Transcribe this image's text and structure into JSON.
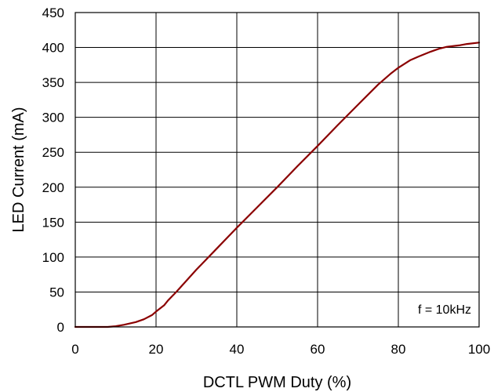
{
  "chart_data": {
    "type": "line",
    "title": "",
    "xlabel": "DCTL PWM Duty (%)",
    "ylabel": "LED Current (mA)",
    "xlim": [
      0,
      100
    ],
    "ylim": [
      0,
      450
    ],
    "xticks": [
      0,
      20,
      40,
      60,
      80,
      100
    ],
    "yticks": [
      0,
      50,
      100,
      150,
      200,
      250,
      300,
      350,
      400,
      450
    ],
    "grid": true,
    "legend": "none",
    "annotation": "f = 10kHz",
    "series": [
      {
        "color": "#8b0000",
        "x": [
          0,
          5,
          8,
          10,
          12,
          15,
          17,
          19,
          20,
          22,
          23,
          25,
          30,
          35,
          40,
          45,
          50,
          55,
          60,
          65,
          70,
          75,
          78,
          80,
          83,
          85,
          88,
          90,
          92,
          95,
          97,
          100
        ],
        "y": [
          0,
          0,
          0,
          1,
          3,
          7,
          11,
          17,
          22,
          31,
          38,
          50,
          82,
          112,
          142,
          171,
          200,
          230,
          259,
          289,
          318,
          347,
          362,
          371,
          382,
          387,
          394,
          398,
          401,
          403,
          405,
          407
        ]
      }
    ]
  }
}
